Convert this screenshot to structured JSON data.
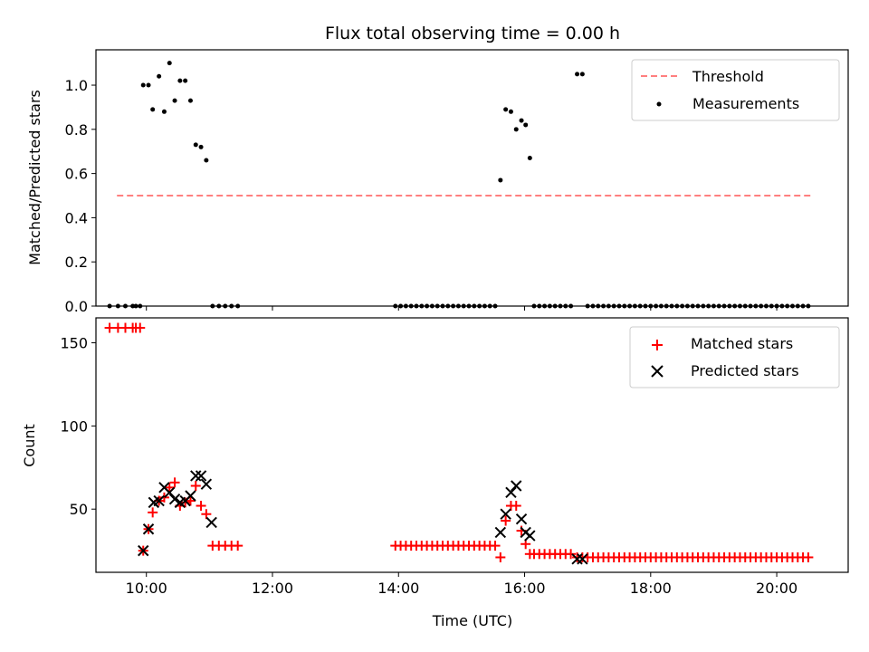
{
  "chart_data": [
    {
      "type": "scatter",
      "title": "Flux total observing time = 0.00 h",
      "xlabel": "",
      "ylabel": "Matched/Predicted stars",
      "xlim": [
        "09:12",
        "21:08"
      ],
      "ylim": [
        0,
        1.16
      ],
      "x_ticks": [
        "10:00",
        "12:00",
        "14:00",
        "16:00",
        "18:00",
        "20:00"
      ],
      "y_ticks": [
        "0.0",
        "0.2",
        "0.4",
        "0.6",
        "0.8",
        "1.0"
      ],
      "legend": "top-right",
      "series": [
        {
          "name": "Threshold",
          "kind": "dashed-line",
          "color": "#ff7f7f",
          "points": [
            [
              "09:32",
              0.5
            ],
            [
              "20:32",
              0.5
            ]
          ]
        },
        {
          "name": "Measurements",
          "kind": "dots",
          "color": "#000000",
          "points": [
            [
              "09:25",
              0
            ],
            [
              "09:33",
              0
            ],
            [
              "09:40",
              0
            ],
            [
              "09:47",
              0
            ],
            [
              "09:50",
              0
            ],
            [
              "09:54",
              0
            ],
            [
              "09:57",
              1.0
            ],
            [
              "10:02",
              1.0
            ],
            [
              "10:06",
              0.89
            ],
            [
              "10:12",
              1.04
            ],
            [
              "10:17",
              0.88
            ],
            [
              "10:22",
              1.1
            ],
            [
              "10:27",
              0.93
            ],
            [
              "10:32",
              1.02
            ],
            [
              "10:37",
              1.02
            ],
            [
              "10:42",
              0.93
            ],
            [
              "10:47",
              0.73
            ],
            [
              "10:52",
              0.72
            ],
            [
              "10:57",
              0.66
            ],
            [
              "11:03",
              0
            ],
            [
              "11:09",
              0
            ],
            [
              "11:15",
              0
            ],
            [
              "11:21",
              0
            ],
            [
              "11:27",
              0
            ],
            [
              "13:57",
              0
            ],
            [
              "14:02",
              0
            ],
            [
              "14:07",
              0
            ],
            [
              "14:12",
              0
            ],
            [
              "14:17",
              0
            ],
            [
              "14:22",
              0
            ],
            [
              "14:27",
              0
            ],
            [
              "14:32",
              0
            ],
            [
              "14:37",
              0
            ],
            [
              "14:42",
              0
            ],
            [
              "14:47",
              0
            ],
            [
              "14:52",
              0
            ],
            [
              "14:57",
              0
            ],
            [
              "15:02",
              0
            ],
            [
              "15:07",
              0
            ],
            [
              "15:12",
              0
            ],
            [
              "15:17",
              0
            ],
            [
              "15:22",
              0
            ],
            [
              "15:27",
              0
            ],
            [
              "15:32",
              0
            ],
            [
              "15:37",
              0.57
            ],
            [
              "15:42",
              0.89
            ],
            [
              "15:47",
              0.88
            ],
            [
              "15:52",
              0.8
            ],
            [
              "15:57",
              0.84
            ],
            [
              "16:01",
              0.82
            ],
            [
              "16:05",
              0.67
            ],
            [
              "16:09",
              0
            ],
            [
              "16:14",
              0
            ],
            [
              "16:19",
              0
            ],
            [
              "16:24",
              0
            ],
            [
              "16:29",
              0
            ],
            [
              "16:34",
              0
            ],
            [
              "16:39",
              0
            ],
            [
              "16:44",
              0
            ],
            [
              "16:50",
              1.05
            ],
            [
              "16:55",
              1.05
            ],
            [
              "17:00",
              0
            ],
            [
              "17:05",
              0
            ],
            [
              "17:10",
              0
            ],
            [
              "17:15",
              0
            ],
            [
              "17:20",
              0
            ],
            [
              "17:25",
              0
            ],
            [
              "17:30",
              0
            ],
            [
              "17:35",
              0
            ],
            [
              "17:40",
              0
            ],
            [
              "17:45",
              0
            ],
            [
              "17:50",
              0
            ],
            [
              "17:55",
              0
            ],
            [
              "18:00",
              0
            ],
            [
              "18:05",
              0
            ],
            [
              "18:10",
              0
            ],
            [
              "18:15",
              0
            ],
            [
              "18:20",
              0
            ],
            [
              "18:25",
              0
            ],
            [
              "18:30",
              0
            ],
            [
              "18:35",
              0
            ],
            [
              "18:40",
              0
            ],
            [
              "18:45",
              0
            ],
            [
              "18:50",
              0
            ],
            [
              "18:55",
              0
            ],
            [
              "19:00",
              0
            ],
            [
              "19:05",
              0
            ],
            [
              "19:10",
              0
            ],
            [
              "19:15",
              0
            ],
            [
              "19:20",
              0
            ],
            [
              "19:25",
              0
            ],
            [
              "19:30",
              0
            ],
            [
              "19:35",
              0
            ],
            [
              "19:40",
              0
            ],
            [
              "19:45",
              0
            ],
            [
              "19:50",
              0
            ],
            [
              "19:55",
              0
            ],
            [
              "20:00",
              0
            ],
            [
              "20:05",
              0
            ],
            [
              "20:10",
              0
            ],
            [
              "20:15",
              0
            ],
            [
              "20:20",
              0
            ],
            [
              "20:25",
              0
            ],
            [
              "20:30",
              0
            ]
          ]
        }
      ]
    },
    {
      "type": "scatter",
      "title": "",
      "xlabel": "Time (UTC)",
      "ylabel": "Count",
      "xlim": [
        "09:12",
        "21:08"
      ],
      "ylim": [
        12,
        165
      ],
      "x_ticks": [
        "10:00",
        "12:00",
        "14:00",
        "16:00",
        "18:00",
        "20:00"
      ],
      "y_ticks": [
        "50",
        "100",
        "150"
      ],
      "legend": "top-right",
      "series": [
        {
          "name": "Matched stars",
          "marker": "plus",
          "color": "#ff0000",
          "points": [
            [
              "09:25",
              159
            ],
            [
              "09:33",
              159
            ],
            [
              "09:40",
              159
            ],
            [
              "09:47",
              159
            ],
            [
              "09:50",
              159
            ],
            [
              "09:54",
              159
            ],
            [
              "09:57",
              25
            ],
            [
              "10:02",
              38
            ],
            [
              "10:06",
              48
            ],
            [
              "10:12",
              55
            ],
            [
              "10:17",
              57
            ],
            [
              "10:22",
              63
            ],
            [
              "10:27",
              66
            ],
            [
              "10:32",
              52
            ],
            [
              "10:37",
              54
            ],
            [
              "10:42",
              55
            ],
            [
              "10:47",
              64
            ],
            [
              "10:52",
              52
            ],
            [
              "10:57",
              47
            ],
            [
              "11:03",
              28
            ],
            [
              "11:09",
              28
            ],
            [
              "11:15",
              28
            ],
            [
              "11:21",
              28
            ],
            [
              "11:27",
              28
            ],
            [
              "13:57",
              28
            ],
            [
              "14:02",
              28
            ],
            [
              "14:07",
              28
            ],
            [
              "14:12",
              28
            ],
            [
              "14:17",
              28
            ],
            [
              "14:22",
              28
            ],
            [
              "14:27",
              28
            ],
            [
              "14:32",
              28
            ],
            [
              "14:37",
              28
            ],
            [
              "14:42",
              28
            ],
            [
              "14:47",
              28
            ],
            [
              "14:52",
              28
            ],
            [
              "14:57",
              28
            ],
            [
              "15:02",
              28
            ],
            [
              "15:07",
              28
            ],
            [
              "15:12",
              28
            ],
            [
              "15:17",
              28
            ],
            [
              "15:22",
              28
            ],
            [
              "15:27",
              28
            ],
            [
              "15:32",
              28
            ],
            [
              "15:37",
              21
            ],
            [
              "15:42",
              43
            ],
            [
              "15:47",
              52
            ],
            [
              "15:52",
              52
            ],
            [
              "15:57",
              37
            ],
            [
              "16:01",
              29
            ],
            [
              "16:05",
              23
            ],
            [
              "16:09",
              23
            ],
            [
              "16:14",
              23
            ],
            [
              "16:19",
              23
            ],
            [
              "16:24",
              23
            ],
            [
              "16:29",
              23
            ],
            [
              "16:34",
              23
            ],
            [
              "16:39",
              23
            ],
            [
              "16:44",
              23
            ],
            [
              "16:50",
              21
            ],
            [
              "16:55",
              21
            ],
            [
              "17:00",
              21
            ],
            [
              "17:05",
              21
            ],
            [
              "17:10",
              21
            ],
            [
              "17:15",
              21
            ],
            [
              "17:20",
              21
            ],
            [
              "17:25",
              21
            ],
            [
              "17:30",
              21
            ],
            [
              "17:35",
              21
            ],
            [
              "17:40",
              21
            ],
            [
              "17:45",
              21
            ],
            [
              "17:50",
              21
            ],
            [
              "17:55",
              21
            ],
            [
              "18:00",
              21
            ],
            [
              "18:05",
              21
            ],
            [
              "18:10",
              21
            ],
            [
              "18:15",
              21
            ],
            [
              "18:20",
              21
            ],
            [
              "18:25",
              21
            ],
            [
              "18:30",
              21
            ],
            [
              "18:35",
              21
            ],
            [
              "18:40",
              21
            ],
            [
              "18:45",
              21
            ],
            [
              "18:50",
              21
            ],
            [
              "18:55",
              21
            ],
            [
              "19:00",
              21
            ],
            [
              "19:05",
              21
            ],
            [
              "19:10",
              21
            ],
            [
              "19:15",
              21
            ],
            [
              "19:20",
              21
            ],
            [
              "19:25",
              21
            ],
            [
              "19:30",
              21
            ],
            [
              "19:35",
              21
            ],
            [
              "19:40",
              21
            ],
            [
              "19:45",
              21
            ],
            [
              "19:50",
              21
            ],
            [
              "19:55",
              21
            ],
            [
              "20:00",
              21
            ],
            [
              "20:05",
              21
            ],
            [
              "20:10",
              21
            ],
            [
              "20:15",
              21
            ],
            [
              "20:20",
              21
            ],
            [
              "20:25",
              21
            ],
            [
              "20:30",
              21
            ]
          ]
        },
        {
          "name": "Predicted stars",
          "marker": "x",
          "color": "#000000",
          "points": [
            [
              "09:57",
              25
            ],
            [
              "10:02",
              38
            ],
            [
              "10:07",
              54
            ],
            [
              "10:12",
              55
            ],
            [
              "10:17",
              63
            ],
            [
              "10:22",
              60
            ],
            [
              "10:27",
              56
            ],
            [
              "10:32",
              54
            ],
            [
              "10:37",
              55
            ],
            [
              "10:42",
              58
            ],
            [
              "10:47",
              70
            ],
            [
              "10:52",
              70
            ],
            [
              "10:57",
              65
            ],
            [
              "11:02",
              42
            ],
            [
              "15:37",
              36
            ],
            [
              "15:42",
              47
            ],
            [
              "15:47",
              60
            ],
            [
              "15:52",
              64
            ],
            [
              "15:57",
              44
            ],
            [
              "16:01",
              36
            ],
            [
              "16:05",
              34
            ],
            [
              "16:50",
              20
            ],
            [
              "16:55",
              20
            ]
          ]
        }
      ]
    }
  ]
}
